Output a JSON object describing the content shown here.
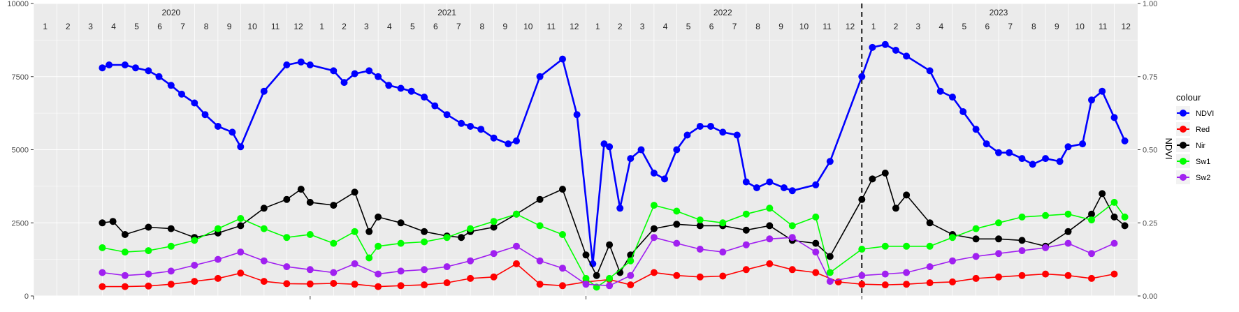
{
  "chart_data": {
    "type": "line",
    "title": "",
    "xlabel": "",
    "ylabel": "",
    "y2label": "NDVI",
    "ylim": [
      0,
      10000
    ],
    "y2lim": [
      0,
      1
    ],
    "yticks": [
      0,
      2500,
      5000,
      7500,
      10000
    ],
    "y2ticks": [
      "0.00",
      "0.25",
      "0.50",
      "0.75",
      "1.00"
    ],
    "xlim": [
      "2020-01",
      "2023-12"
    ],
    "grid": true,
    "vline": "2023-01",
    "legend_title": "colour",
    "legend_position": "right",
    "years": [
      "2020",
      "2021",
      "2022",
      "2023"
    ],
    "months": [
      "1",
      "2",
      "3",
      "4",
      "5",
      "6",
      "7",
      "8",
      "9",
      "10",
      "11",
      "12"
    ],
    "colors": {
      "NDVI": "#0000ff",
      "Red": "#ff0000",
      "Nir": "#000000",
      "Sw1": "#00ff00",
      "Sw2": "#a020f0"
    },
    "series": [
      {
        "name": "NDVI",
        "axis": "right",
        "x": [
          "2020-04-01",
          "2020-04-10",
          "2020-05-01",
          "2020-05-15",
          "2020-06-01",
          "2020-06-15",
          "2020-07-01",
          "2020-07-15",
          "2020-08-01",
          "2020-08-15",
          "2020-09-01",
          "2020-09-20",
          "2020-10-01",
          "2020-11-01",
          "2020-12-01",
          "2020-12-20",
          "2021-01-01",
          "2021-02-01",
          "2021-02-15",
          "2021-03-01",
          "2021-03-20",
          "2021-04-01",
          "2021-04-15",
          "2021-05-01",
          "2021-05-15",
          "2021-06-01",
          "2021-06-15",
          "2021-07-01",
          "2021-07-20",
          "2021-08-01",
          "2021-08-15",
          "2021-09-01",
          "2021-09-20",
          "2021-10-01",
          "2021-11-01",
          "2021-12-01",
          "2021-12-20",
          "2022-01-10",
          "2022-01-25",
          "2022-02-01",
          "2022-02-15",
          "2022-03-01",
          "2022-03-15",
          "2022-04-01",
          "2022-04-15",
          "2022-05-01",
          "2022-05-15",
          "2022-06-01",
          "2022-06-15",
          "2022-07-01",
          "2022-07-20",
          "2022-08-01",
          "2022-08-15",
          "2022-09-01",
          "2022-09-20",
          "2022-10-01",
          "2022-11-01",
          "2022-11-20",
          "2023-01-01",
          "2023-01-15",
          "2023-02-01",
          "2023-02-15",
          "2023-03-01",
          "2023-04-01",
          "2023-04-15",
          "2023-05-01",
          "2023-05-15",
          "2023-06-01",
          "2023-06-15",
          "2023-07-01",
          "2023-07-15",
          "2023-08-01",
          "2023-08-15",
          "2023-09-01",
          "2023-09-20",
          "2023-10-01",
          "2023-10-20",
          "2023-11-01",
          "2023-11-15",
          "2023-12-01",
          "2023-12-15"
        ],
        "values": [
          0.78,
          0.79,
          0.79,
          0.78,
          0.77,
          0.75,
          0.72,
          0.69,
          0.66,
          0.62,
          0.58,
          0.56,
          0.51,
          0.7,
          0.79,
          0.8,
          0.79,
          0.77,
          0.73,
          0.76,
          0.77,
          0.75,
          0.72,
          0.71,
          0.7,
          0.68,
          0.65,
          0.62,
          0.59,
          0.58,
          0.57,
          0.54,
          0.52,
          0.53,
          0.75,
          0.81,
          0.62,
          0.11,
          0.52,
          0.51,
          0.3,
          0.47,
          0.5,
          0.42,
          0.4,
          0.5,
          0.55,
          0.58,
          0.58,
          0.56,
          0.55,
          0.39,
          0.37,
          0.39,
          0.37,
          0.36,
          0.38,
          0.46,
          0.75,
          0.85,
          0.86,
          0.84,
          0.82,
          0.77,
          0.7,
          0.68,
          0.63,
          0.57,
          0.52,
          0.49,
          0.49,
          0.47,
          0.45,
          0.47,
          0.46,
          0.51,
          0.52,
          0.67,
          0.7,
          0.61,
          0.53
        ]
      },
      {
        "name": "Red",
        "axis": "left",
        "x": [
          "2020-04-01",
          "2020-05-01",
          "2020-06-01",
          "2020-07-01",
          "2020-08-01",
          "2020-09-01",
          "2020-10-01",
          "2020-11-01",
          "2020-12-01",
          "2021-01-01",
          "2021-02-01",
          "2021-03-01",
          "2021-04-01",
          "2021-05-01",
          "2021-06-01",
          "2021-07-01",
          "2021-08-01",
          "2021-09-01",
          "2021-10-01",
          "2021-11-01",
          "2021-12-01",
          "2022-01-01",
          "2022-02-01",
          "2022-03-01",
          "2022-04-01",
          "2022-05-01",
          "2022-06-01",
          "2022-07-01",
          "2022-08-01",
          "2022-09-01",
          "2022-10-01",
          "2022-11-01",
          "2022-12-01",
          "2023-01-01",
          "2023-02-01",
          "2023-03-01",
          "2023-04-01",
          "2023-05-01",
          "2023-06-01",
          "2023-07-01",
          "2023-08-01",
          "2023-09-01",
          "2023-10-01",
          "2023-11-01",
          "2023-12-01"
        ],
        "values": [
          320,
          320,
          340,
          400,
          500,
          600,
          780,
          500,
          420,
          410,
          430,
          400,
          320,
          350,
          380,
          450,
          600,
          650,
          1100,
          400,
          350,
          480,
          560,
          380,
          800,
          700,
          650,
          680,
          900,
          1100,
          900,
          800,
          480,
          400,
          380,
          400,
          450,
          480,
          600,
          650,
          700,
          750,
          700,
          600,
          750
        ]
      },
      {
        "name": "Nir",
        "axis": "left",
        "x": [
          "2020-04-01",
          "2020-04-15",
          "2020-05-01",
          "2020-06-01",
          "2020-07-01",
          "2020-08-01",
          "2020-09-01",
          "2020-10-01",
          "2020-11-01",
          "2020-12-01",
          "2020-12-20",
          "2021-01-01",
          "2021-02-01",
          "2021-03-01",
          "2021-03-20",
          "2021-04-01",
          "2021-05-01",
          "2021-06-01",
          "2021-07-01",
          "2021-07-20",
          "2021-08-01",
          "2021-09-01",
          "2021-10-01",
          "2021-11-01",
          "2021-12-01",
          "2022-01-01",
          "2022-01-15",
          "2022-02-01",
          "2022-02-15",
          "2022-03-01",
          "2022-04-01",
          "2022-05-01",
          "2022-06-01",
          "2022-07-01",
          "2022-08-01",
          "2022-09-01",
          "2022-10-01",
          "2022-11-01",
          "2022-11-20",
          "2023-01-01",
          "2023-01-15",
          "2023-02-01",
          "2023-02-15",
          "2023-03-01",
          "2023-04-01",
          "2023-05-01",
          "2023-06-01",
          "2023-07-01",
          "2023-08-01",
          "2023-09-01",
          "2023-10-01",
          "2023-11-01",
          "2023-11-15",
          "2023-12-01",
          "2023-12-15"
        ],
        "values": [
          2500,
          2550,
          2100,
          2350,
          2300,
          2000,
          2150,
          2400,
          3000,
          3300,
          3650,
          3200,
          3100,
          3550,
          2200,
          2700,
          2500,
          2200,
          2050,
          2000,
          2200,
          2350,
          2800,
          3300,
          3650,
          1400,
          700,
          1750,
          800,
          1400,
          2300,
          2450,
          2400,
          2400,
          2250,
          2400,
          1900,
          1800,
          1350,
          3300,
          4000,
          4200,
          3000,
          3450,
          2500,
          2100,
          1950,
          1950,
          1900,
          1700,
          2200,
          2800,
          3500,
          2700,
          2400
        ]
      },
      {
        "name": "Sw1",
        "axis": "left",
        "x": [
          "2020-04-01",
          "2020-05-01",
          "2020-06-01",
          "2020-07-01",
          "2020-08-01",
          "2020-09-01",
          "2020-10-01",
          "2020-11-01",
          "2020-12-01",
          "2021-01-01",
          "2021-02-01",
          "2021-03-01",
          "2021-03-20",
          "2021-04-01",
          "2021-05-01",
          "2021-06-01",
          "2021-07-01",
          "2021-08-01",
          "2021-09-01",
          "2021-10-01",
          "2021-11-01",
          "2021-12-01",
          "2022-01-01",
          "2022-01-15",
          "2022-02-01",
          "2022-03-01",
          "2022-04-01",
          "2022-05-01",
          "2022-06-01",
          "2022-07-01",
          "2022-08-01",
          "2022-09-01",
          "2022-10-01",
          "2022-11-01",
          "2022-11-20",
          "2023-01-01",
          "2023-02-01",
          "2023-03-01",
          "2023-04-01",
          "2023-05-01",
          "2023-06-01",
          "2023-07-01",
          "2023-08-01",
          "2023-09-01",
          "2023-10-01",
          "2023-11-01",
          "2023-12-01",
          "2023-12-15"
        ],
        "values": [
          1650,
          1500,
          1550,
          1700,
          1900,
          2300,
          2650,
          2300,
          2000,
          2100,
          1800,
          2200,
          1300,
          1700,
          1800,
          1850,
          2000,
          2300,
          2550,
          2800,
          2400,
          2100,
          600,
          300,
          600,
          1200,
          3100,
          2900,
          2600,
          2500,
          2800,
          3000,
          2400,
          2700,
          800,
          1600,
          1700,
          1700,
          1700,
          2000,
          2300,
          2500,
          2700,
          2750,
          2800,
          2600,
          3200,
          2700
        ]
      },
      {
        "name": "Sw2",
        "axis": "left",
        "x": [
          "2020-04-01",
          "2020-05-01",
          "2020-06-01",
          "2020-07-01",
          "2020-08-01",
          "2020-09-01",
          "2020-10-01",
          "2020-11-01",
          "2020-12-01",
          "2021-01-01",
          "2021-02-01",
          "2021-03-01",
          "2021-04-01",
          "2021-05-01",
          "2021-06-01",
          "2021-07-01",
          "2021-08-01",
          "2021-09-01",
          "2021-10-01",
          "2021-11-01",
          "2021-12-01",
          "2022-01-01",
          "2022-02-01",
          "2022-03-01",
          "2022-04-01",
          "2022-05-01",
          "2022-06-01",
          "2022-07-01",
          "2022-08-01",
          "2022-09-01",
          "2022-10-01",
          "2022-11-01",
          "2022-11-20",
          "2023-01-01",
          "2023-02-01",
          "2023-03-01",
          "2023-04-01",
          "2023-05-01",
          "2023-06-01",
          "2023-07-01",
          "2023-08-01",
          "2023-09-01",
          "2023-10-01",
          "2023-11-01",
          "2023-12-01"
        ],
        "values": [
          800,
          700,
          750,
          850,
          1050,
          1250,
          1500,
          1200,
          1000,
          900,
          800,
          1100,
          750,
          850,
          900,
          1000,
          1200,
          1450,
          1700,
          1200,
          950,
          400,
          350,
          700,
          2000,
          1800,
          1600,
          1500,
          1750,
          1950,
          2000,
          1500,
          500,
          700,
          750,
          800,
          1000,
          1200,
          1350,
          1450,
          1550,
          1650,
          1800,
          1450,
          1800
        ]
      }
    ]
  }
}
